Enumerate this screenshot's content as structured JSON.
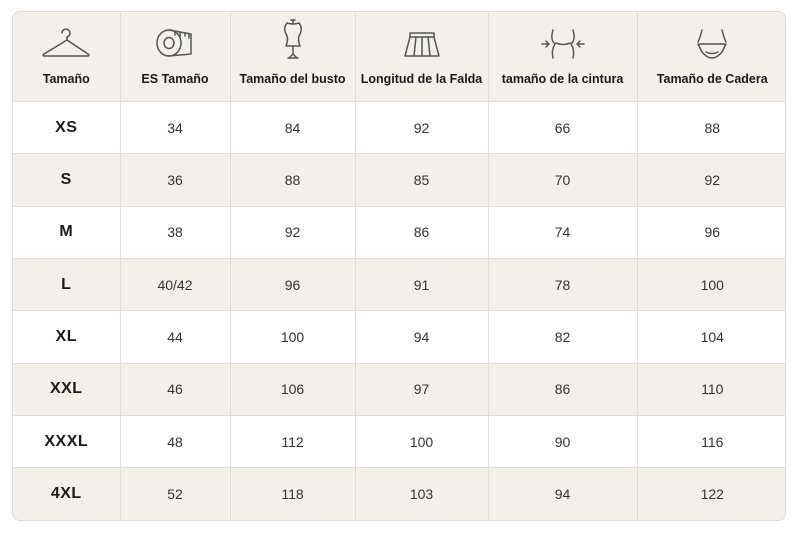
{
  "columns": [
    {
      "label": "Tamaño",
      "icon": "hanger-icon"
    },
    {
      "label": "ES Tamaño",
      "icon": "measuring-tape-icon"
    },
    {
      "label": "Tamaño del busto",
      "icon": "dress-form-icon"
    },
    {
      "label": "Longitud de la Falda",
      "icon": "skirt-icon"
    },
    {
      "label": "tamaño de la cintura",
      "icon": "waist-icon"
    },
    {
      "label": "Tamaño de Cadera",
      "icon": "hip-icon"
    }
  ],
  "rows": [
    [
      "XS",
      "34",
      "84",
      "92",
      "66",
      "88"
    ],
    [
      "S",
      "36",
      "88",
      "85",
      "70",
      "92"
    ],
    [
      "M",
      "38",
      "92",
      "86",
      "74",
      "96"
    ],
    [
      "L",
      "40/42",
      "96",
      "91",
      "78",
      "100"
    ],
    [
      "XL",
      "44",
      "100",
      "94",
      "82",
      "104"
    ],
    [
      "XXL",
      "46",
      "106",
      "97",
      "86",
      "110"
    ],
    [
      "XXXL",
      "48",
      "112",
      "100",
      "90",
      "116"
    ],
    [
      "4XL",
      "52",
      "118",
      "103",
      "94",
      "122"
    ]
  ],
  "colors": {
    "header_bg": "#f3efeb",
    "alt_row_bg": "#f3efeb",
    "border": "#e0dcd7",
    "icon_stroke": "#555555"
  }
}
